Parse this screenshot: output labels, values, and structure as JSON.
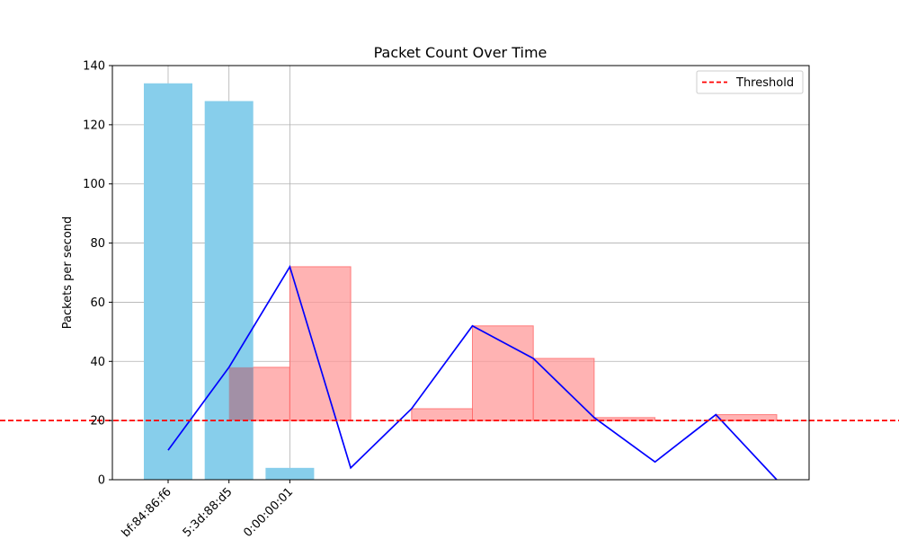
{
  "chart_data": {
    "type": "bar",
    "title": "Packet Count Over Time",
    "xlabel": "",
    "ylabel": "Packets per second",
    "ylim": [
      0,
      140
    ],
    "yticks": [
      0,
      20,
      40,
      60,
      80,
      100,
      120,
      140
    ],
    "grid": true,
    "legend_position": "top-right",
    "categories": [
      "bf:84:86:f6",
      "5:3d:88:d5",
      "0:00:00:01"
    ],
    "bars": {
      "color": "#87ceeb",
      "values": [
        134,
        128,
        4
      ]
    },
    "line": {
      "color": "#0000ff",
      "x": [
        0,
        1,
        2,
        3,
        4,
        5,
        6,
        7,
        8,
        9,
        10
      ],
      "values": [
        10,
        38,
        72,
        4,
        24,
        52,
        41,
        21,
        6,
        22,
        0
      ]
    },
    "threshold": {
      "name": "Threshold",
      "value": 20,
      "color": "#ff0000"
    },
    "exceedance_fill": {
      "color": "#ff9999",
      "segments": [
        {
          "x": 1,
          "value": 38
        },
        {
          "x": 2,
          "value": 72
        },
        {
          "x": 4,
          "value": 24
        },
        {
          "x": 5,
          "value": 52
        },
        {
          "x": 6,
          "value": 41
        },
        {
          "x": 7,
          "value": 21
        },
        {
          "x": 9,
          "value": 22
        }
      ]
    }
  }
}
